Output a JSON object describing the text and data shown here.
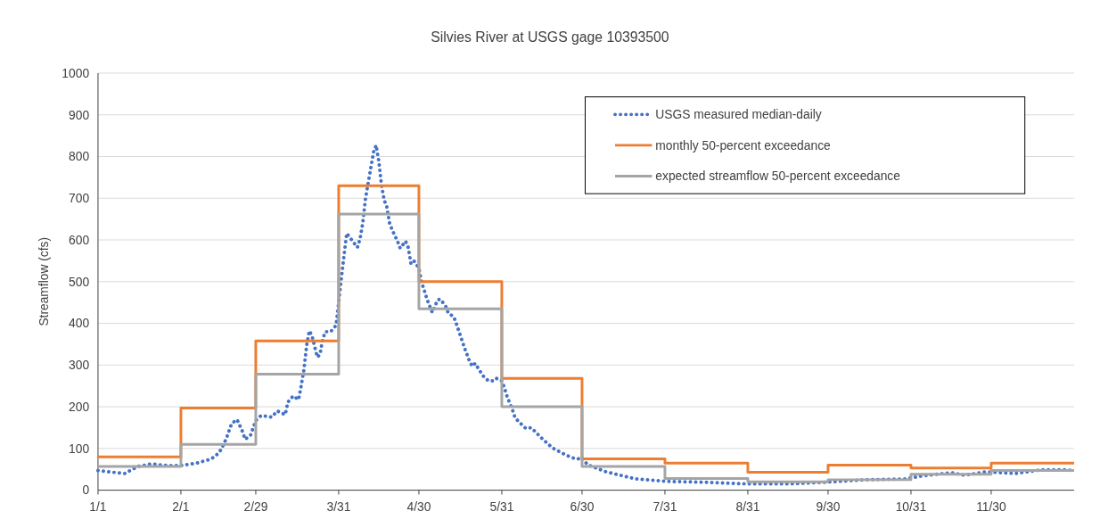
{
  "chart_data": {
    "type": "line",
    "title": "Silvies River at USGS gage 10393500",
    "ylabel": "Streamflow (cfs)",
    "xlim": [
      "--01-01",
      "--12-31"
    ],
    "xticks": [
      {
        "value": "--01-01",
        "label": "1/1"
      },
      {
        "value": "--02-01",
        "label": "2/1"
      },
      {
        "value": "--02-29",
        "label": "2/29"
      },
      {
        "value": "--03-31",
        "label": "3/31"
      },
      {
        "value": "--04-30",
        "label": "4/30"
      },
      {
        "value": "--05-31",
        "label": "5/31"
      },
      {
        "value": "--06-30",
        "label": "6/30"
      },
      {
        "value": "--07-31",
        "label": "7/31"
      },
      {
        "value": "--08-31",
        "label": "8/31"
      },
      {
        "value": "--09-30",
        "label": "9/30"
      },
      {
        "value": "--10-31",
        "label": "10/31"
      },
      {
        "value": "--11-30",
        "label": "11/30"
      }
    ],
    "ylim": [
      0,
      1000
    ],
    "yticks": [
      0,
      100,
      200,
      300,
      400,
      500,
      600,
      700,
      800,
      900,
      1000
    ],
    "grid": "y",
    "legend": "top right",
    "marker": "none",
    "series": [
      {
        "name": "USGS measured median-daily",
        "color": "#4472c4",
        "line_style": "dotted",
        "x": [
          "--01-01",
          "--01-05",
          "--01-11",
          "--01-16",
          "--01-21",
          "--01-27",
          "--02-01",
          "--02-07",
          "--02-12",
          "--02-14",
          "--02-16",
          "--02-18",
          "--02-20",
          "--02-22",
          "--02-24",
          "--02-25",
          "--02-27",
          "--02-29",
          "--03-02",
          "--03-06",
          "--03-08",
          "--03-11",
          "--03-12",
          "--03-14",
          "--03-16",
          "--03-17",
          "--03-18",
          "--03-19",
          "--03-20",
          "--03-21",
          "--03-23",
          "--03-24",
          "--03-25",
          "--03-26",
          "--03-28",
          "--03-30",
          "--03-31",
          "--04-01",
          "--04-02",
          "--04-03",
          "--04-05",
          "--04-07",
          "--04-08",
          "--04-09",
          "--04-10",
          "--04-11",
          "--04-12",
          "--04-13",
          "--04-14",
          "--04-15",
          "--04-16",
          "--04-17",
          "--04-18",
          "--04-19",
          "--04-20",
          "--04-22",
          "--04-23",
          "--04-25",
          "--04-26",
          "--04-27",
          "--04-28",
          "--04-30",
          "--05-01",
          "--05-02",
          "--05-03",
          "--05-05",
          "--05-07",
          "--05-08",
          "--05-10",
          "--05-11",
          "--05-13",
          "--05-14",
          "--05-15",
          "--05-16",
          "--05-17",
          "--05-18",
          "--05-19",
          "--05-20",
          "--05-21",
          "--05-24",
          "--05-26",
          "--05-28",
          "--05-29",
          "--05-31",
          "--06-01",
          "--06-02",
          "--06-04",
          "--06-05",
          "--06-07",
          "--06-09",
          "--06-11",
          "--06-15",
          "--06-19",
          "--06-24",
          "--06-28",
          "--06-30",
          "--07-02",
          "--07-09",
          "--07-20",
          "--08-01",
          "--08-15",
          "--08-31",
          "--09-15",
          "--09-29",
          "--10-14",
          "--10-29",
          "--11-04",
          "--11-15",
          "--11-20",
          "--11-28",
          "--12-09",
          "--12-19",
          "--12-27",
          "--12-31"
        ],
        "values": [
          47,
          44,
          40,
          57,
          63,
          59,
          59,
          65,
          74,
          82,
          97,
          124,
          160,
          169,
          141,
          122,
          131,
          167,
          179,
          175,
          190,
          181,
          211,
          226,
          217,
          251,
          289,
          346,
          382,
          371,
          319,
          325,
          361,
          380,
          380,
          395,
          451,
          508,
          563,
          616,
          599,
          582,
          603,
          641,
          698,
          736,
          772,
          810,
          827,
          789,
          732,
          696,
          679,
          641,
          624,
          597,
          580,
          597,
          582,
          544,
          551,
          532,
          498,
          479,
          458,
          426,
          456,
          458,
          441,
          424,
          416,
          399,
          380,
          361,
          342,
          325,
          308,
          297,
          304,
          274,
          262,
          262,
          268,
          262,
          245,
          224,
          192,
          173,
          160,
          148,
          150,
          124,
          101,
          84,
          74,
          78,
          61,
          44,
          27,
          21,
          19,
          15,
          15,
          19,
          25,
          27,
          34,
          42,
          36,
          44,
          40,
          49,
          49,
          47
        ]
      },
      {
        "name": "monthly 50-percent exceedance",
        "color": "#ed7d31",
        "type": "step",
        "line_style": "solid",
        "x": [
          "--01-01",
          "--02-01",
          "--02-29",
          "--03-31",
          "--04-30",
          "--05-31",
          "--06-30",
          "--07-31",
          "--08-31",
          "--09-30",
          "--10-31",
          "--11-30",
          "--12-31"
        ],
        "values": [
          80,
          197,
          358,
          730,
          500,
          268,
          75,
          65,
          43,
          60,
          53,
          65,
          65
        ]
      },
      {
        "name": "expected streamflow 50-percent exceedance",
        "color": "#a5a5a5",
        "type": "step",
        "line_style": "solid",
        "x": [
          "--01-01",
          "--02-01",
          "--02-29",
          "--03-31",
          "--04-30",
          "--05-31",
          "--06-30",
          "--07-31",
          "--08-31",
          "--09-30",
          "--10-31",
          "--11-30",
          "--12-31"
        ],
        "values": [
          57,
          110,
          278,
          662,
          435,
          200,
          57,
          28,
          20,
          25,
          38,
          47,
          47
        ]
      }
    ]
  }
}
